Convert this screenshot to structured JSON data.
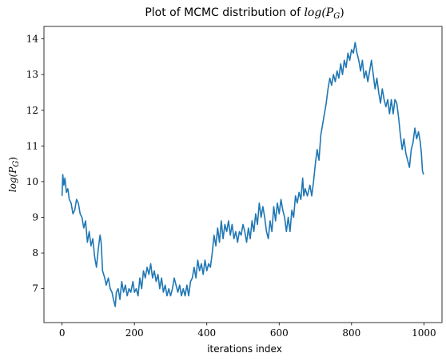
{
  "chart_data": {
    "type": "line",
    "title": "Plot of MCMC distribution of log(P_G)",
    "title_prefix": "Plot of MCMC distribution of ",
    "title_math": "log(P",
    "title_math_sub": "G",
    "title_math_end": ")",
    "xlabel": "iterations index",
    "ylabel_math": "log(P",
    "ylabel_math_sub": "G",
    "ylabel_math_end": ")",
    "xlim": [
      -50,
      1050
    ],
    "ylim": [
      6.05,
      14.35
    ],
    "xticks": [
      0,
      200,
      400,
      600,
      800,
      1000
    ],
    "yticks": [
      7,
      8,
      9,
      10,
      11,
      12,
      13,
      14
    ],
    "grid": false,
    "series": [
      {
        "color": "#1f77b4",
        "points": [
          [
            0,
            9.6
          ],
          [
            2,
            10.2
          ],
          [
            5,
            9.9
          ],
          [
            8,
            10.1
          ],
          [
            12,
            9.7
          ],
          [
            16,
            9.8
          ],
          [
            20,
            9.5
          ],
          [
            25,
            9.4
          ],
          [
            30,
            9.1
          ],
          [
            35,
            9.2
          ],
          [
            40,
            9.5
          ],
          [
            45,
            9.4
          ],
          [
            50,
            9.1
          ],
          [
            55,
            9.0
          ],
          [
            60,
            8.7
          ],
          [
            65,
            8.9
          ],
          [
            70,
            8.3
          ],
          [
            75,
            8.6
          ],
          [
            80,
            8.2
          ],
          [
            85,
            8.4
          ],
          [
            90,
            7.9
          ],
          [
            95,
            7.6
          ],
          [
            100,
            8.1
          ],
          [
            105,
            8.5
          ],
          [
            108,
            8.3
          ],
          [
            112,
            7.5
          ],
          [
            118,
            7.3
          ],
          [
            122,
            7.1
          ],
          [
            128,
            7.3
          ],
          [
            133,
            7.0
          ],
          [
            138,
            6.9
          ],
          [
            142,
            6.7
          ],
          [
            147,
            6.5
          ],
          [
            150,
            6.9
          ],
          [
            155,
            7.0
          ],
          [
            160,
            6.7
          ],
          [
            165,
            7.2
          ],
          [
            170,
            6.9
          ],
          [
            175,
            7.1
          ],
          [
            180,
            6.8
          ],
          [
            185,
            7.0
          ],
          [
            190,
            6.9
          ],
          [
            196,
            7.2
          ],
          [
            200,
            6.9
          ],
          [
            205,
            7.0
          ],
          [
            210,
            6.8
          ],
          [
            215,
            7.3
          ],
          [
            220,
            7.0
          ],
          [
            225,
            7.5
          ],
          [
            230,
            7.3
          ],
          [
            235,
            7.6
          ],
          [
            240,
            7.4
          ],
          [
            245,
            7.7
          ],
          [
            250,
            7.3
          ],
          [
            255,
            7.5
          ],
          [
            260,
            7.2
          ],
          [
            265,
            7.4
          ],
          [
            270,
            7.0
          ],
          [
            275,
            7.3
          ],
          [
            280,
            6.9
          ],
          [
            285,
            7.1
          ],
          [
            290,
            6.8
          ],
          [
            295,
            7.0
          ],
          [
            300,
            6.8
          ],
          [
            305,
            7.0
          ],
          [
            310,
            7.3
          ],
          [
            315,
            7.1
          ],
          [
            320,
            6.9
          ],
          [
            325,
            7.1
          ],
          [
            330,
            6.8
          ],
          [
            335,
            7.0
          ],
          [
            340,
            6.8
          ],
          [
            345,
            7.1
          ],
          [
            350,
            6.8
          ],
          [
            355,
            7.2
          ],
          [
            360,
            7.3
          ],
          [
            365,
            7.6
          ],
          [
            370,
            7.3
          ],
          [
            375,
            7.8
          ],
          [
            380,
            7.5
          ],
          [
            385,
            7.7
          ],
          [
            390,
            7.4
          ],
          [
            395,
            7.8
          ],
          [
            400,
            7.5
          ],
          [
            405,
            7.7
          ],
          [
            410,
            7.6
          ],
          [
            415,
            8.0
          ],
          [
            420,
            8.5
          ],
          [
            425,
            8.2
          ],
          [
            430,
            8.7
          ],
          [
            435,
            8.3
          ],
          [
            440,
            8.9
          ],
          [
            445,
            8.4
          ],
          [
            450,
            8.8
          ],
          [
            455,
            8.6
          ],
          [
            460,
            8.9
          ],
          [
            465,
            8.5
          ],
          [
            470,
            8.8
          ],
          [
            475,
            8.4
          ],
          [
            480,
            8.6
          ],
          [
            485,
            8.3
          ],
          [
            490,
            8.6
          ],
          [
            495,
            8.5
          ],
          [
            500,
            8.8
          ],
          [
            505,
            8.6
          ],
          [
            510,
            8.3
          ],
          [
            515,
            8.7
          ],
          [
            520,
            8.4
          ],
          [
            525,
            8.9
          ],
          [
            530,
            8.6
          ],
          [
            535,
            9.1
          ],
          [
            540,
            8.8
          ],
          [
            545,
            9.4
          ],
          [
            550,
            9.0
          ],
          [
            555,
            9.3
          ],
          [
            560,
            9.0
          ],
          [
            565,
            8.6
          ],
          [
            570,
            8.4
          ],
          [
            575,
            8.9
          ],
          [
            580,
            8.6
          ],
          [
            585,
            9.3
          ],
          [
            590,
            8.9
          ],
          [
            595,
            9.4
          ],
          [
            600,
            9.1
          ],
          [
            605,
            9.5
          ],
          [
            610,
            9.2
          ],
          [
            615,
            9.0
          ],
          [
            620,
            8.6
          ],
          [
            625,
            9.0
          ],
          [
            630,
            8.6
          ],
          [
            635,
            9.2
          ],
          [
            640,
            9.0
          ],
          [
            645,
            9.6
          ],
          [
            650,
            9.4
          ],
          [
            655,
            9.7
          ],
          [
            660,
            9.5
          ],
          [
            665,
            10.1
          ],
          [
            668,
            9.6
          ],
          [
            672,
            9.8
          ],
          [
            678,
            9.6
          ],
          [
            685,
            9.9
          ],
          [
            690,
            9.6
          ],
          [
            695,
            10.0
          ],
          [
            700,
            10.5
          ],
          [
            705,
            10.9
          ],
          [
            710,
            10.6
          ],
          [
            715,
            11.3
          ],
          [
            720,
            11.6
          ],
          [
            725,
            11.9
          ],
          [
            730,
            12.2
          ],
          [
            735,
            12.6
          ],
          [
            740,
            12.9
          ],
          [
            745,
            12.7
          ],
          [
            750,
            13.0
          ],
          [
            755,
            12.8
          ],
          [
            760,
            13.1
          ],
          [
            765,
            12.9
          ],
          [
            770,
            13.3
          ],
          [
            775,
            13.0
          ],
          [
            780,
            13.4
          ],
          [
            785,
            13.2
          ],
          [
            790,
            13.6
          ],
          [
            795,
            13.4
          ],
          [
            800,
            13.7
          ],
          [
            805,
            13.6
          ],
          [
            810,
            13.9
          ],
          [
            815,
            13.6
          ],
          [
            820,
            13.4
          ],
          [
            825,
            13.1
          ],
          [
            830,
            13.4
          ],
          [
            835,
            12.9
          ],
          [
            840,
            13.1
          ],
          [
            845,
            12.8
          ],
          [
            850,
            13.1
          ],
          [
            855,
            13.4
          ],
          [
            860,
            13.0
          ],
          [
            865,
            12.6
          ],
          [
            870,
            12.9
          ],
          [
            875,
            12.5
          ],
          [
            880,
            12.2
          ],
          [
            885,
            12.6
          ],
          [
            890,
            12.3
          ],
          [
            895,
            12.1
          ],
          [
            900,
            12.3
          ],
          [
            905,
            11.9
          ],
          [
            910,
            12.3
          ],
          [
            915,
            11.9
          ],
          [
            920,
            12.3
          ],
          [
            925,
            12.2
          ],
          [
            930,
            11.8
          ],
          [
            935,
            11.3
          ],
          [
            940,
            10.9
          ],
          [
            945,
            11.2
          ],
          [
            950,
            10.8
          ],
          [
            955,
            10.6
          ],
          [
            960,
            10.4
          ],
          [
            965,
            10.9
          ],
          [
            970,
            11.1
          ],
          [
            975,
            11.5
          ],
          [
            980,
            11.2
          ],
          [
            985,
            11.4
          ],
          [
            990,
            11.1
          ],
          [
            993,
            10.8
          ],
          [
            996,
            10.3
          ],
          [
            999,
            10.2
          ]
        ]
      }
    ]
  }
}
